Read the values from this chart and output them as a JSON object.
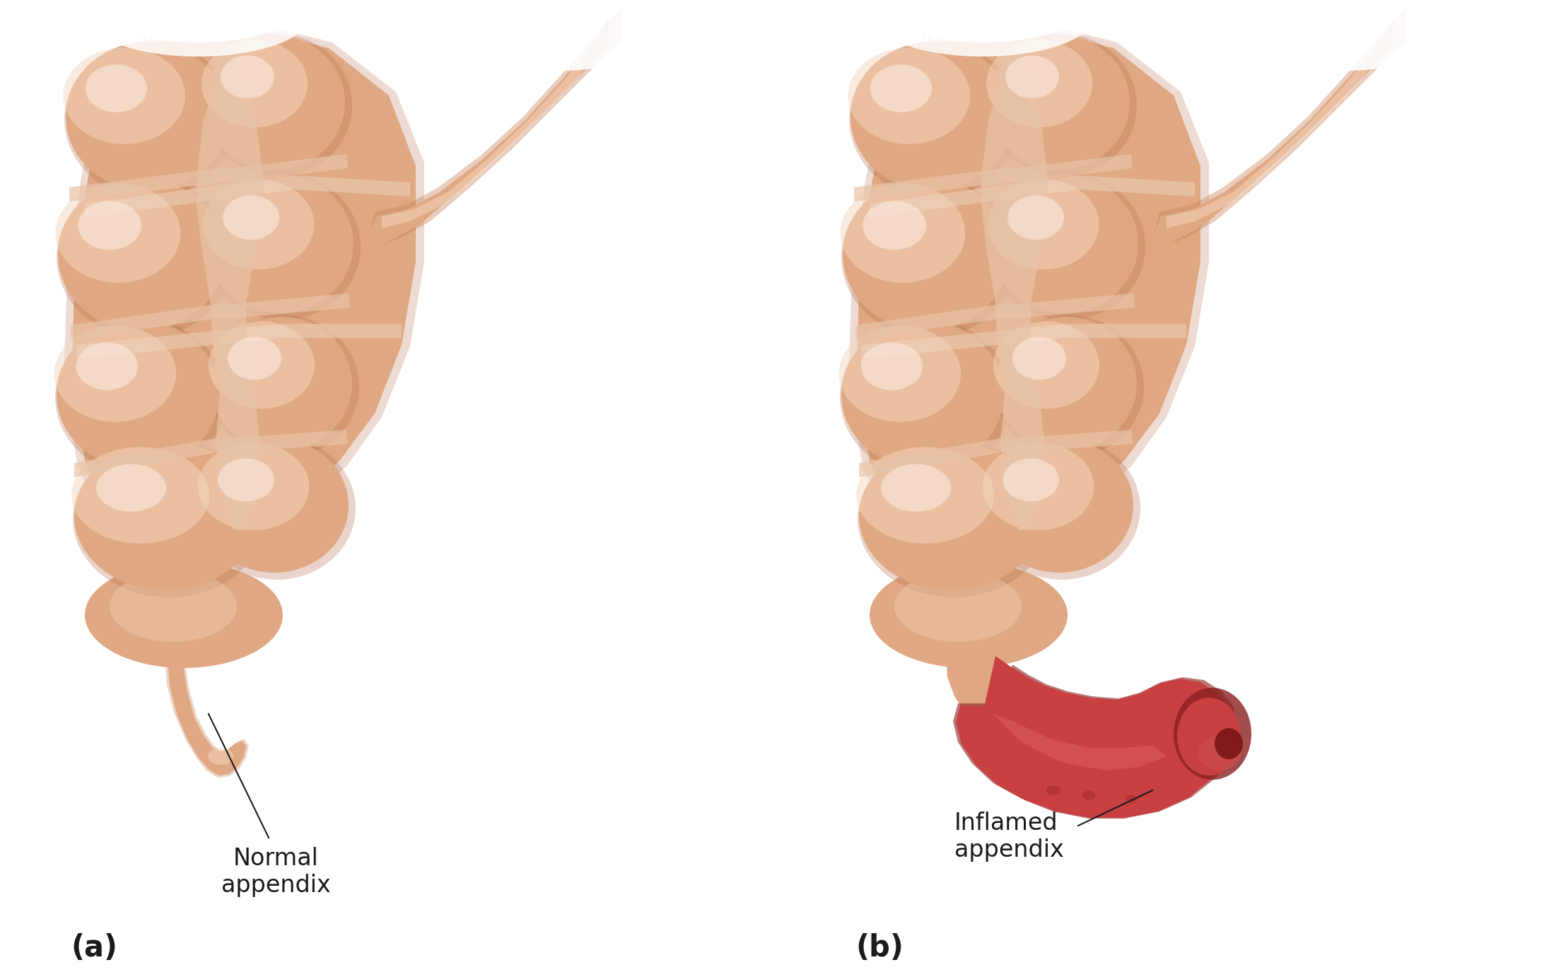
{
  "bg_color": "#ffffff",
  "panel_a_label": "(a)",
  "panel_b_label": "(b)",
  "normal_appendix_label": "Normal\nappendix",
  "inflamed_appendix_label": "Inflamed\nappendix",
  "label_color": "#1a1a1a",
  "line_color": "#1a1a1a",
  "skin_base": "#dfa882",
  "skin_light": "#f5d8c0",
  "skin_lighter": "#faeae0",
  "skin_mid": "#e8b898",
  "skin_dark": "#c8825a",
  "skin_shadow": "#b87050",
  "groove_color": "#e8c4a8",
  "inflamed_base": "#c84040",
  "inflamed_light": "#e06060",
  "inflamed_dark": "#8b2020",
  "inflamed_tip": "#7a1515",
  "label_fontsize": 24,
  "panel_label_fontsize": 30
}
